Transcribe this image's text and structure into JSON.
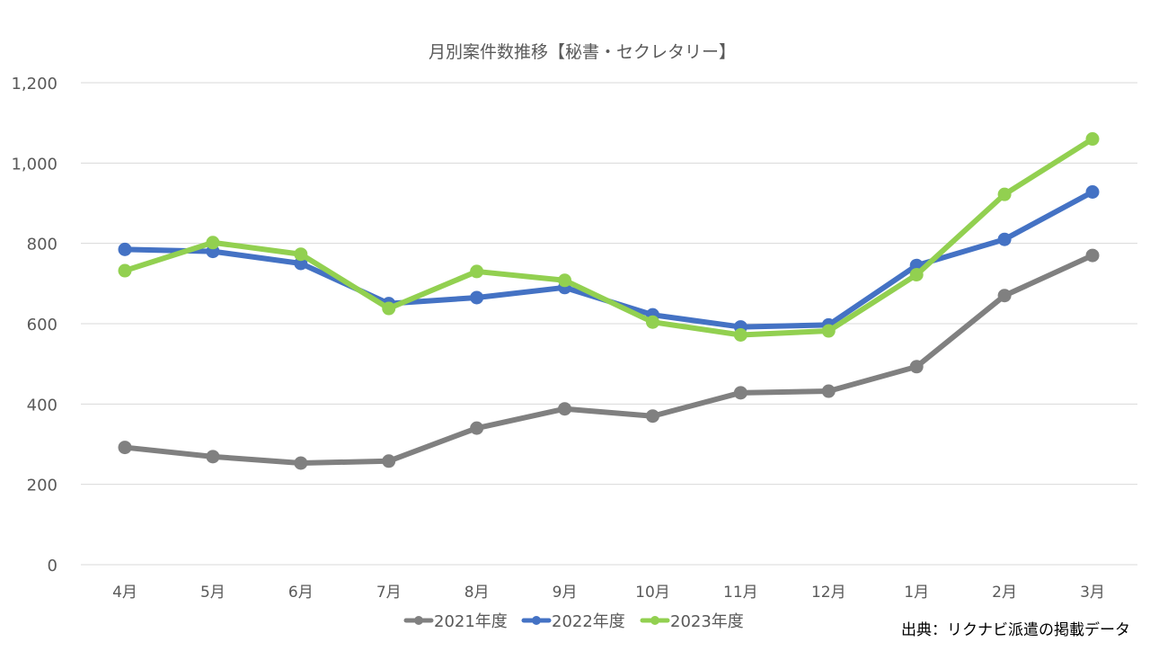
{
  "source_note": "出典：リクナビ派遣の掲載データ",
  "colors": {
    "gridline": "#d9d9d9",
    "axis_text": "#595959",
    "title_text": "#595959"
  },
  "chart_data": {
    "type": "line",
    "title": "月別案件数推移【秘書・セクレタリー】",
    "xlabel": "",
    "ylabel": "",
    "categories": [
      "4月",
      "5月",
      "6月",
      "7月",
      "8月",
      "9月",
      "10月",
      "11月",
      "12月",
      "1月",
      "2月",
      "3月"
    ],
    "ylim": [
      0,
      1200
    ],
    "yticks": [
      0,
      200,
      400,
      600,
      800,
      1000,
      1200
    ],
    "ytick_labels": [
      "0",
      "200",
      "400",
      "600",
      "800",
      "1,000",
      "1,200"
    ],
    "grid": true,
    "legend_position": "bottom",
    "series": [
      {
        "name": "2021年度",
        "color": "#808080",
        "values": [
          292,
          269,
          253,
          258,
          340,
          388,
          370,
          428,
          432,
          493,
          670,
          770
        ]
      },
      {
        "name": "2022年度",
        "color": "#4472c4",
        "values": [
          785,
          780,
          750,
          650,
          665,
          690,
          622,
          592,
          597,
          745,
          810,
          928
        ]
      },
      {
        "name": "2023年度",
        "color": "#92d050",
        "values": [
          732,
          802,
          773,
          638,
          730,
          708,
          604,
          572,
          582,
          722,
          922,
          1060
        ]
      }
    ]
  }
}
